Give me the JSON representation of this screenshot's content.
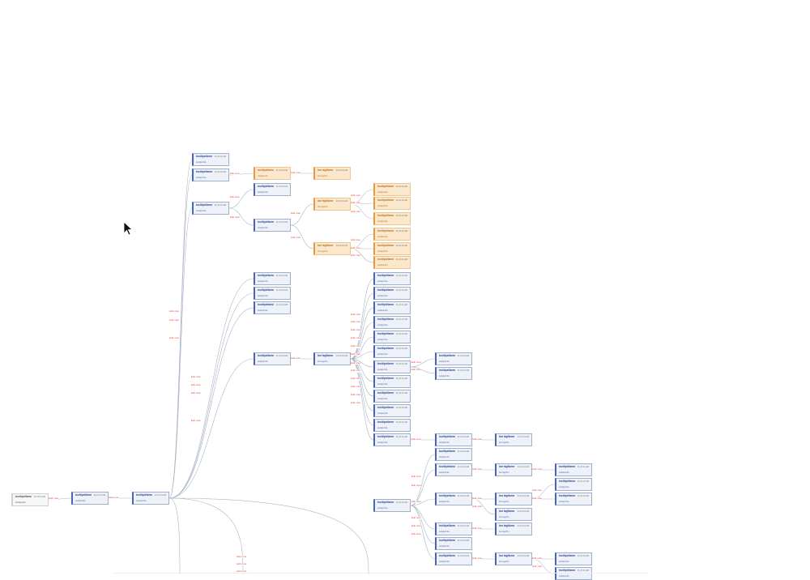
{
  "node_name": "tooltipsName",
  "node_sub": "tooltipsInfo",
  "node_name_alt": "bar tagName",
  "node_sub_alt": "bar tagInfo",
  "edge_label": "Edit note",
  "time_label": "11:23:24 AM",
  "colors": {
    "edge_line": "#aab4c8",
    "edge_label": "#e34b3d",
    "node_blue_border": "#4a66b0",
    "node_blue_fill": "#eef1f7",
    "node_orange_fill": "#fbe7cc",
    "node_orange_border": "#e79a3c"
  }
}
